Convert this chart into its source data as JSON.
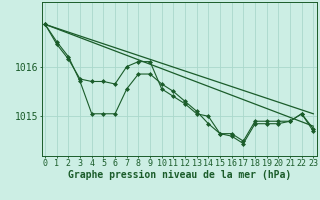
{
  "xlabel": "Graphe pression niveau de la mer (hPa)",
  "background_color": "#cceee4",
  "grid_color": "#aad8cc",
  "line_color": "#1a5c2a",
  "x_hours": [
    0,
    1,
    2,
    3,
    4,
    5,
    6,
    7,
    8,
    9,
    10,
    11,
    12,
    13,
    14,
    15,
    16,
    17,
    18,
    19,
    20,
    21,
    22,
    23
  ],
  "series1": [
    1016.85,
    1016.5,
    1016.2,
    1015.7,
    1015.05,
    1015.05,
    1015.05,
    1015.55,
    1015.85,
    1015.85,
    1015.65,
    1015.5,
    1015.3,
    1015.1,
    1014.85,
    1014.65,
    1014.65,
    1014.5,
    1014.9,
    1014.9,
    1014.9,
    1014.9,
    1015.05,
    1014.75
  ],
  "series2": [
    1016.85,
    1016.45,
    1016.15,
    1015.75,
    1015.7,
    1015.7,
    1015.65,
    1016.0,
    1016.1,
    1016.1,
    1015.55,
    1015.4,
    1015.25,
    1015.05,
    1015.0,
    1014.65,
    1014.6,
    1014.45,
    1014.85,
    1014.85,
    1014.85,
    1014.9,
    1015.05,
    1014.7
  ],
  "trend1": [
    1016.85,
    1015.05
  ],
  "trend2": [
    1016.85,
    1014.8
  ],
  "ylim": [
    1014.2,
    1017.3
  ],
  "yticks": [
    1015,
    1016
  ],
  "tick_fontsize": 6,
  "label_fontsize": 7,
  "figsize": [
    3.2,
    2.0
  ],
  "dpi": 100
}
